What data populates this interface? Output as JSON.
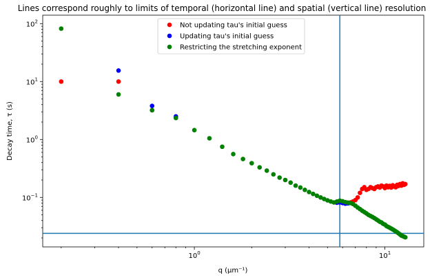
{
  "chart_data": {
    "type": "scatter",
    "title": "Lines correspond roughly to limits of temporal (horizontal line) and spatial (vertical line) resolution",
    "xlabel": "q (μm⁻¹)",
    "ylabel": "Decay time, τ (s)",
    "x_scale": "log",
    "y_scale": "log",
    "xlim": [
      0.16,
      16
    ],
    "ylim": [
      0.014,
      140
    ],
    "x_ticks": [
      {
        "value": 1,
        "base": "10",
        "exp": "0"
      },
      {
        "value": 10,
        "base": "10",
        "exp": "1"
      }
    ],
    "y_ticks": [
      {
        "value": 0.1,
        "base": "10",
        "exp": "−1"
      },
      {
        "value": 1,
        "base": "10",
        "exp": "0"
      },
      {
        "value": 10,
        "base": "10",
        "exp": "1"
      },
      {
        "value": 100,
        "base": "10",
        "exp": "2"
      }
    ],
    "reference_lines": {
      "horizontal_y": 0.024,
      "vertical_x": 5.8,
      "color": "#1f77b4"
    },
    "legend": {
      "position": "top-center",
      "entries": [
        {
          "label": "Not updating tau's initial guess",
          "color": "#ff0000"
        },
        {
          "label": "Updating tau's initial guess",
          "color": "#0000ff"
        },
        {
          "label": "Restricting the stretching exponent",
          "color": "#008000"
        }
      ]
    },
    "grid": false,
    "series": [
      {
        "name": "Not updating tau's initial guess",
        "color": "#ff0000",
        "points": [
          [
            0.2,
            10
          ],
          [
            0.4,
            10
          ],
          [
            0.6,
            3.2
          ],
          [
            0.8,
            2.4
          ],
          [
            6.0,
            0.083
          ],
          [
            6.2,
            0.082
          ],
          [
            6.4,
            0.081
          ],
          [
            6.6,
            0.082
          ],
          [
            6.8,
            0.085
          ],
          [
            7.0,
            0.09
          ],
          [
            7.2,
            0.1
          ],
          [
            7.4,
            0.12
          ],
          [
            7.6,
            0.14
          ],
          [
            7.8,
            0.15
          ],
          [
            8.0,
            0.135
          ],
          [
            8.2,
            0.14
          ],
          [
            8.4,
            0.15
          ],
          [
            8.6,
            0.145
          ],
          [
            8.8,
            0.14
          ],
          [
            9.0,
            0.15
          ],
          [
            9.2,
            0.155
          ],
          [
            9.4,
            0.148
          ],
          [
            9.6,
            0.16
          ],
          [
            9.8,
            0.155
          ],
          [
            10.0,
            0.145
          ],
          [
            10.2,
            0.16
          ],
          [
            10.4,
            0.15
          ],
          [
            10.6,
            0.158
          ],
          [
            10.8,
            0.148
          ],
          [
            11.0,
            0.162
          ],
          [
            11.2,
            0.155
          ],
          [
            11.4,
            0.15
          ],
          [
            11.6,
            0.165
          ],
          [
            11.8,
            0.158
          ],
          [
            12.0,
            0.17
          ],
          [
            12.2,
            0.16
          ],
          [
            12.4,
            0.175
          ],
          [
            12.6,
            0.165
          ],
          [
            12.8,
            0.17
          ]
        ]
      },
      {
        "name": "Updating tau's initial guess",
        "color": "#0000ff",
        "points": [
          [
            0.4,
            15.5
          ],
          [
            0.6,
            3.8
          ],
          [
            0.8,
            2.5
          ],
          [
            5.6,
            0.081
          ],
          [
            5.8,
            0.082
          ],
          [
            6.0,
            0.08
          ],
          [
            6.2,
            0.078
          ],
          [
            6.4,
            0.079
          ]
        ]
      },
      {
        "name": "Restricting the stretching exponent",
        "color": "#008000",
        "points": [
          [
            0.2,
            82
          ],
          [
            0.4,
            6
          ],
          [
            0.6,
            3.2
          ],
          [
            0.8,
            2.35
          ],
          [
            1.0,
            1.45
          ],
          [
            1.2,
            1.05
          ],
          [
            1.4,
            0.75
          ],
          [
            1.6,
            0.56
          ],
          [
            1.8,
            0.46
          ],
          [
            2.0,
            0.39
          ],
          [
            2.2,
            0.33
          ],
          [
            2.4,
            0.29
          ],
          [
            2.6,
            0.25
          ],
          [
            2.8,
            0.22
          ],
          [
            3.0,
            0.2
          ],
          [
            3.2,
            0.18
          ],
          [
            3.4,
            0.16
          ],
          [
            3.6,
            0.148
          ],
          [
            3.8,
            0.135
          ],
          [
            4.0,
            0.124
          ],
          [
            4.2,
            0.115
          ],
          [
            4.4,
            0.107
          ],
          [
            4.6,
            0.1
          ],
          [
            4.8,
            0.094
          ],
          [
            5.0,
            0.089
          ],
          [
            5.2,
            0.085
          ],
          [
            5.4,
            0.082
          ],
          [
            5.6,
            0.085
          ],
          [
            5.8,
            0.088
          ],
          [
            6.0,
            0.086
          ],
          [
            6.2,
            0.083
          ],
          [
            6.4,
            0.081
          ],
          [
            6.6,
            0.08
          ],
          [
            6.8,
            0.077
          ],
          [
            7.0,
            0.072
          ],
          [
            7.2,
            0.067
          ],
          [
            7.4,
            0.063
          ],
          [
            7.6,
            0.059
          ],
          [
            7.8,
            0.056
          ],
          [
            8.0,
            0.053
          ],
          [
            8.2,
            0.05
          ],
          [
            8.4,
            0.048
          ],
          [
            8.6,
            0.046
          ],
          [
            8.8,
            0.044
          ],
          [
            9.0,
            0.042
          ],
          [
            9.2,
            0.04
          ],
          [
            9.4,
            0.038
          ],
          [
            9.6,
            0.037
          ],
          [
            9.8,
            0.035
          ],
          [
            10.0,
            0.034
          ],
          [
            10.2,
            0.032
          ],
          [
            10.4,
            0.031
          ],
          [
            10.6,
            0.03
          ],
          [
            10.8,
            0.029
          ],
          [
            11.0,
            0.028
          ],
          [
            11.2,
            0.027
          ],
          [
            11.4,
            0.026
          ],
          [
            11.6,
            0.025
          ],
          [
            11.8,
            0.024
          ],
          [
            12.0,
            0.023
          ],
          [
            12.2,
            0.022
          ],
          [
            12.4,
            0.0215
          ],
          [
            12.6,
            0.021
          ],
          [
            12.8,
            0.0205
          ]
        ]
      }
    ]
  }
}
